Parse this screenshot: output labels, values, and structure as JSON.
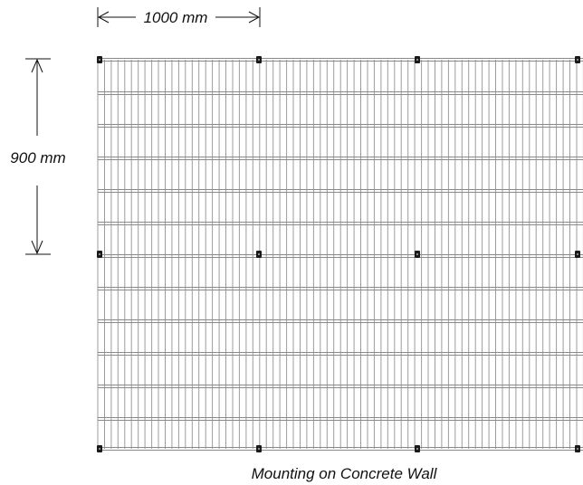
{
  "dimensions": {
    "horizontal_label": "1000 mm",
    "vertical_label": "900 mm"
  },
  "caption": "Mounting on Concrete Wall",
  "colors": {
    "background": "#ffffff",
    "mesh_wire": "#9c9c9c",
    "mesh_rail": "#8a8a8a",
    "bracket": "#1a1a1a",
    "text": "#111111",
    "dimension_line": "#111111"
  }
}
